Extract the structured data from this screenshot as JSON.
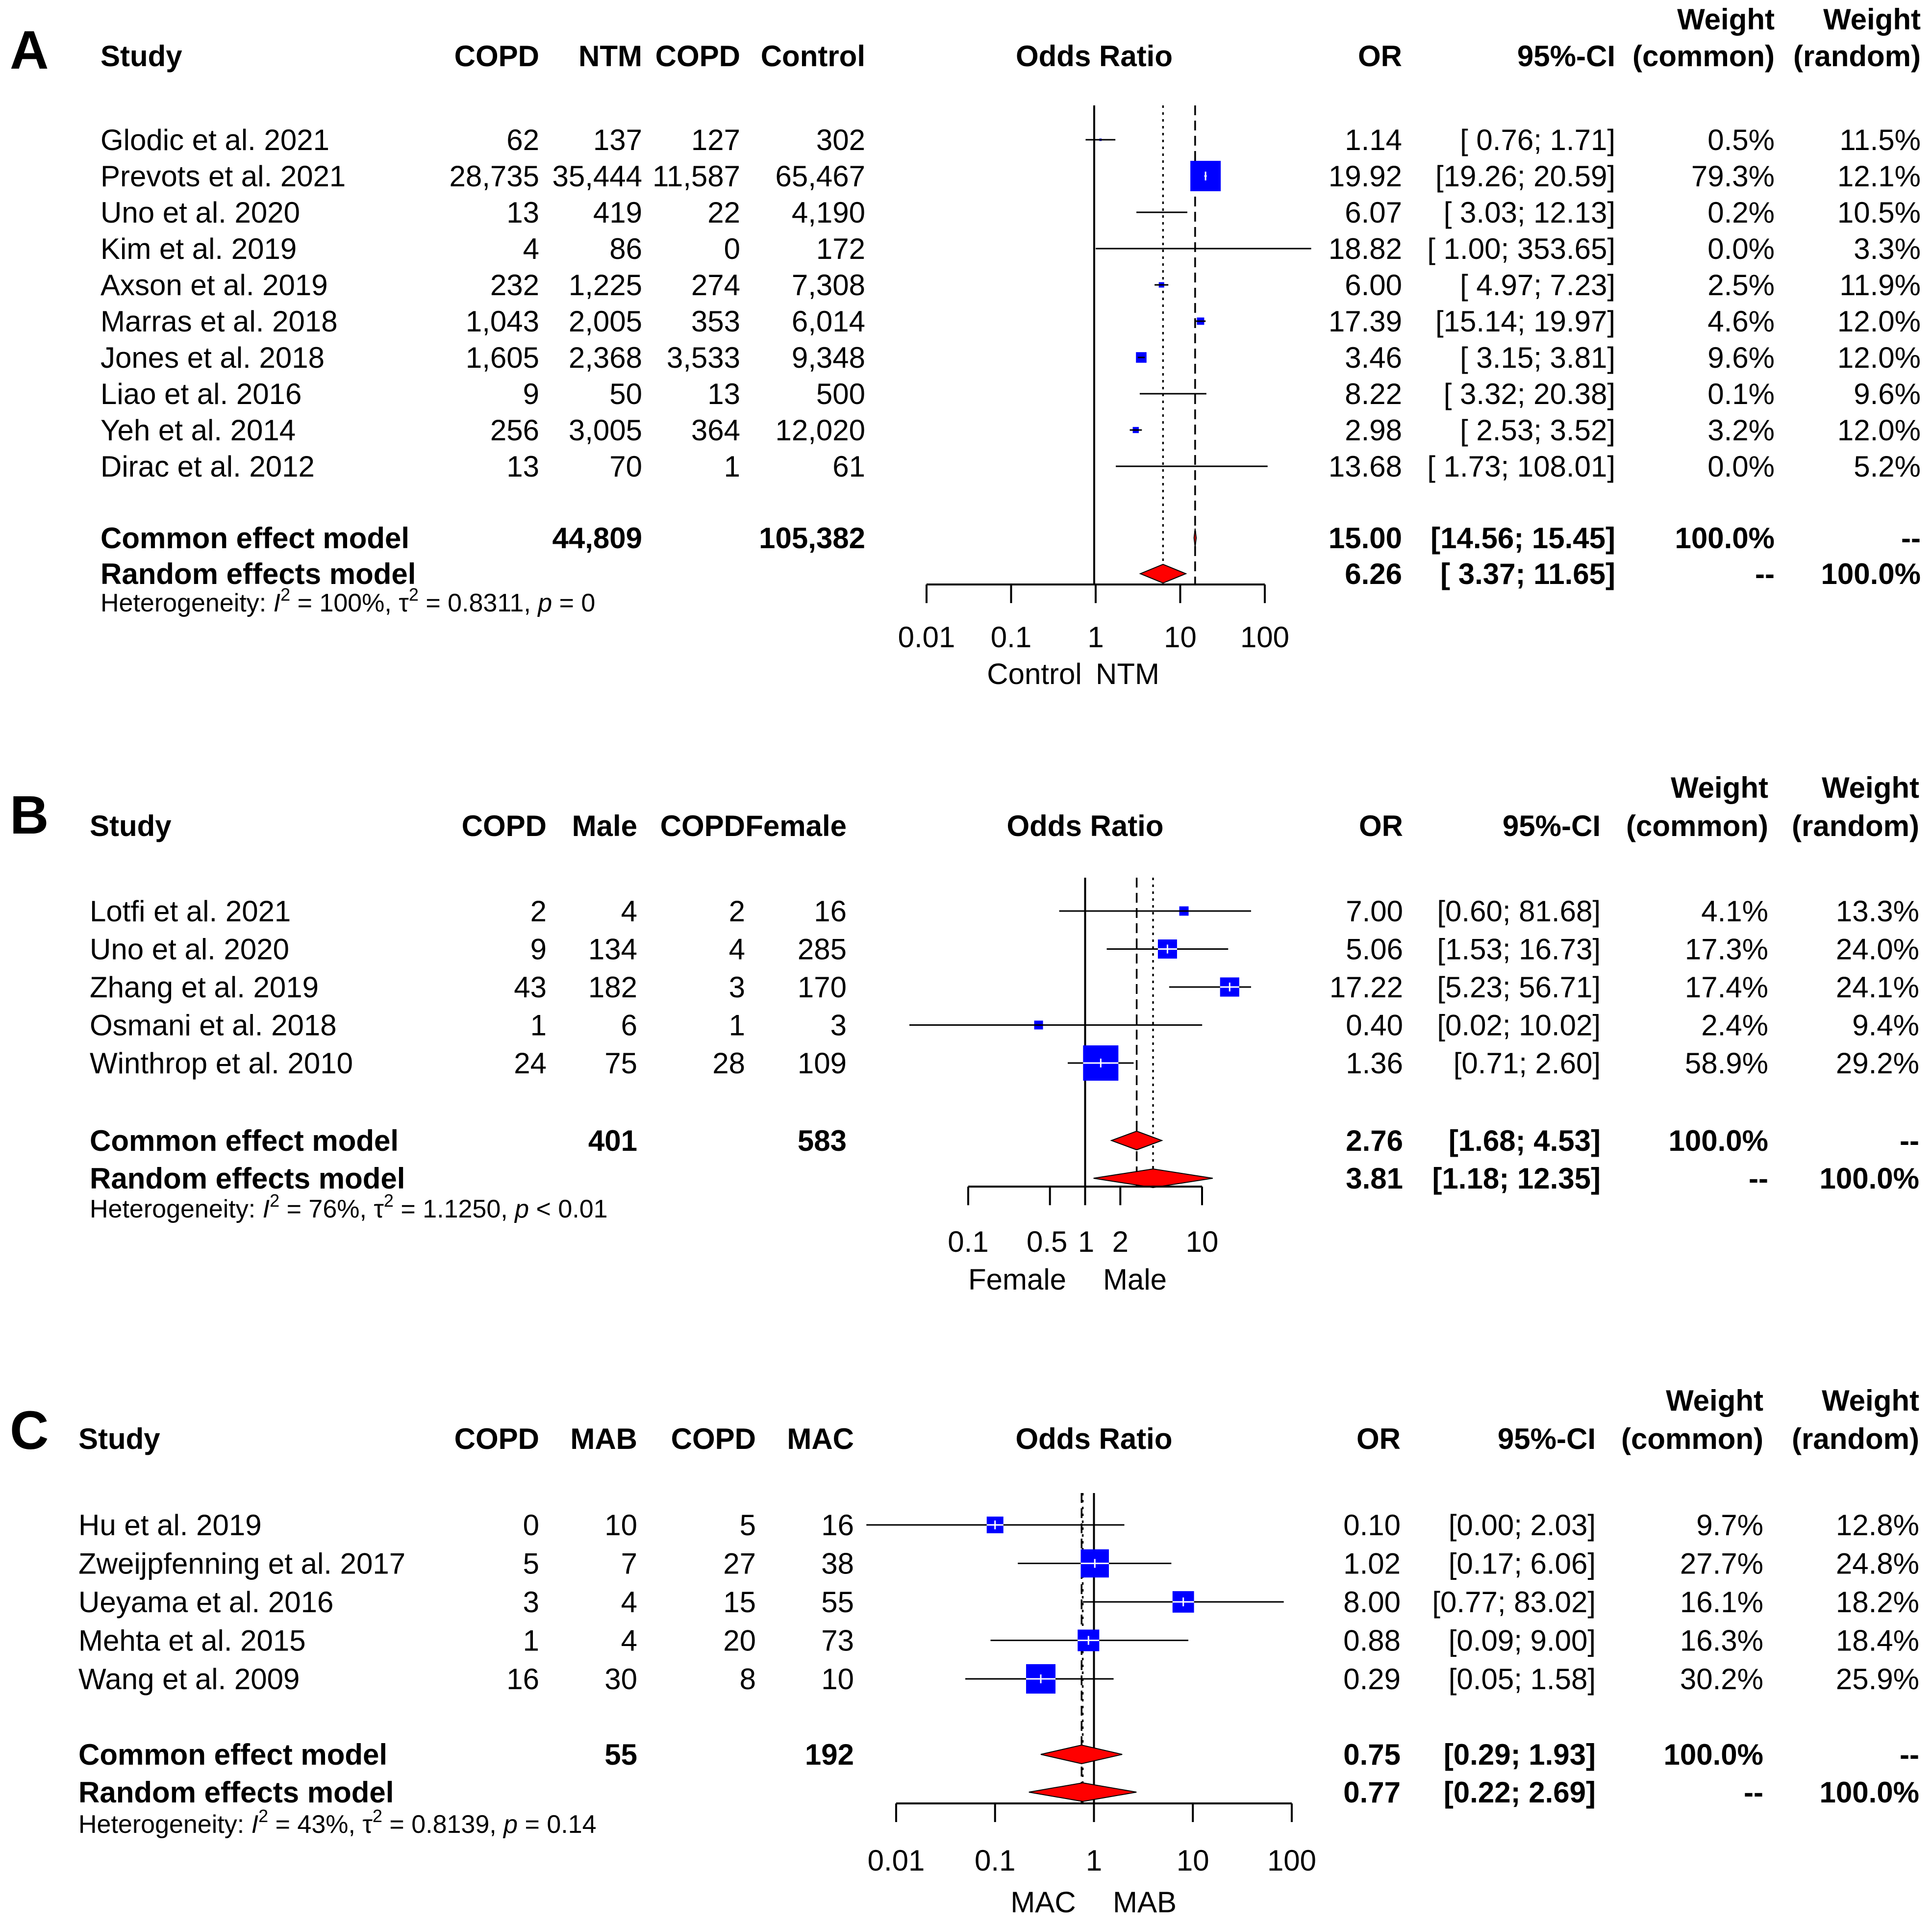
{
  "chart_data": [
    {
      "type": "forest",
      "panel": "A",
      "columns": {
        "study": "Study",
        "g1_events": "COPD",
        "g1_total": "NTM",
        "g2_events": "COPD",
        "g2_total": "Control",
        "plot": "Odds Ratio",
        "or": "OR",
        "ci": "95%-CI",
        "w_common": [
          "Weight",
          "(common)"
        ],
        "w_random": [
          "Weight",
          "(random)"
        ]
      },
      "axis": {
        "ticks": [
          0.01,
          0.1,
          1,
          10,
          100
        ],
        "tick_labels": [
          "0.01",
          "0.1",
          "1",
          "10",
          "100"
        ],
        "xlim": [
          0.01,
          100
        ],
        "left_label": "Control",
        "right_label": "NTM"
      },
      "studies": [
        {
          "name": "Glodic et al. 2021",
          "g1_events": "62",
          "g1_total": "137",
          "g2_events": "127",
          "g2_total": "302",
          "or_text": "1.14",
          "ci_text": "[ 0.76;   1.71]",
          "w_common": "0.5%",
          "w_random": "11.5%",
          "or": 1.14,
          "lo": 0.76,
          "hi": 1.71,
          "w": 0.5
        },
        {
          "name": "Prevots et al. 2021",
          "g1_events": "28,735",
          "g1_total": "35,444",
          "g2_events": "11,587",
          "g2_total": "65,467",
          "or_text": "19.92",
          "ci_text": "[19.26;  20.59]",
          "w_common": "79.3%",
          "w_random": "12.1%",
          "or": 19.92,
          "lo": 19.26,
          "hi": 20.59,
          "w": 79.3
        },
        {
          "name": "Uno et al. 2020",
          "g1_events": "13",
          "g1_total": "419",
          "g2_events": "22",
          "g2_total": "4,190",
          "or_text": "6.07",
          "ci_text": "[ 3.03;  12.13]",
          "w_common": "0.2%",
          "w_random": "10.5%",
          "or": 6.07,
          "lo": 3.03,
          "hi": 12.13,
          "w": 0.2
        },
        {
          "name": "Kim et al. 2019",
          "g1_events": "4",
          "g1_total": "86",
          "g2_events": "0",
          "g2_total": "172",
          "or_text": "18.82",
          "ci_text": "[ 1.00; 353.65]",
          "w_common": "0.0%",
          "w_random": "3.3%",
          "or": 18.82,
          "lo": 1.0,
          "hi": 353.65,
          "w": 0.0
        },
        {
          "name": "Axson et al. 2019",
          "g1_events": "232",
          "g1_total": "1,225",
          "g2_events": "274",
          "g2_total": "7,308",
          "or_text": "6.00",
          "ci_text": "[ 4.97;   7.23]",
          "w_common": "2.5%",
          "w_random": "11.9%",
          "or": 6.0,
          "lo": 4.97,
          "hi": 7.23,
          "w": 2.5
        },
        {
          "name": "Marras et al. 2018",
          "g1_events": "1,043",
          "g1_total": "2,005",
          "g2_events": "353",
          "g2_total": "6,014",
          "or_text": "17.39",
          "ci_text": "[15.14;  19.97]",
          "w_common": "4.6%",
          "w_random": "12.0%",
          "or": 17.39,
          "lo": 15.14,
          "hi": 19.97,
          "w": 4.6
        },
        {
          "name": "Jones et al. 2018",
          "g1_events": "1,605",
          "g1_total": "2,368",
          "g2_events": "3,533",
          "g2_total": "9,348",
          "or_text": "3.46",
          "ci_text": "[ 3.15;   3.81]",
          "w_common": "9.6%",
          "w_random": "12.0%",
          "or": 3.46,
          "lo": 3.15,
          "hi": 3.81,
          "w": 9.6
        },
        {
          "name": "Liao et al. 2016",
          "g1_events": "9",
          "g1_total": "50",
          "g2_events": "13",
          "g2_total": "500",
          "or_text": "8.22",
          "ci_text": "[ 3.32;  20.38]",
          "w_common": "0.1%",
          "w_random": "9.6%",
          "or": 8.22,
          "lo": 3.32,
          "hi": 20.38,
          "w": 0.1
        },
        {
          "name": "Yeh et al. 2014",
          "g1_events": "256",
          "g1_total": "3,005",
          "g2_events": "364",
          "g2_total": "12,020",
          "or_text": "2.98",
          "ci_text": "[ 2.53;   3.52]",
          "w_common": "3.2%",
          "w_random": "12.0%",
          "or": 2.98,
          "lo": 2.53,
          "hi": 3.52,
          "w": 3.2
        },
        {
          "name": "Dirac et al. 2012",
          "g1_events": "13",
          "g1_total": "70",
          "g2_events": "1",
          "g2_total": "61",
          "or_text": "13.68",
          "ci_text": "[ 1.73; 108.01]",
          "w_common": "0.0%",
          "w_random": "5.2%",
          "or": 13.68,
          "lo": 1.73,
          "hi": 108.01,
          "w": 0.0
        }
      ],
      "common": {
        "label": "Common effect model",
        "g1_total": "44,809",
        "g2_total": "105,382",
        "or_text": "15.00",
        "ci_text": "[14.56;  15.45]",
        "w_common": "100.0%",
        "w_random": "--",
        "or": 15.0,
        "lo": 14.56,
        "hi": 15.45
      },
      "random": {
        "label": "Random effects model",
        "or_text": "6.26",
        "ci_text": "[ 3.37;  11.65]",
        "w_common": "--",
        "w_random": "100.0%",
        "or": 6.26,
        "lo": 3.37,
        "hi": 11.65
      },
      "heterogeneity": {
        "prefix": "Heterogeneity: ",
        "i2": "I",
        "i2_value": " = 100%, ",
        "tau": "τ",
        "tau_value": " = 0.8311, ",
        "p": "p",
        "p_value": " = 0"
      }
    },
    {
      "type": "forest",
      "panel": "B",
      "columns": {
        "study": "Study",
        "g1_events": "COPD",
        "g1_total": "Male",
        "g2_events": "COPD",
        "g2_total": "Female",
        "plot": "Odds Ratio",
        "or": "OR",
        "ci": "95%-CI",
        "w_common": [
          "Weight",
          "(common)"
        ],
        "w_random": [
          "Weight",
          "(random)"
        ]
      },
      "axis": {
        "ticks": [
          0.1,
          0.5,
          1,
          2,
          10
        ],
        "tick_labels": [
          "0.1",
          "0.5",
          "1",
          "2",
          "10"
        ],
        "xlim": [
          0.1,
          10
        ],
        "left_label": "Female",
        "right_label": "Male"
      },
      "studies": [
        {
          "name": "Lotfi et al. 2021",
          "g1_events": "2",
          "g1_total": "4",
          "g2_events": "2",
          "g2_total": "16",
          "or_text": "7.00",
          "ci_text": "[0.60; 81.68]",
          "w_common": "4.1%",
          "w_random": "13.3%",
          "or": 7.0,
          "lo": 0.6,
          "hi": 81.68,
          "w": 4.1
        },
        {
          "name": "Uno et al. 2020",
          "g1_events": "9",
          "g1_total": "134",
          "g2_events": "4",
          "g2_total": "285",
          "or_text": "5.06",
          "ci_text": "[1.53; 16.73]",
          "w_common": "17.3%",
          "w_random": "24.0%",
          "or": 5.06,
          "lo": 1.53,
          "hi": 16.73,
          "w": 17.3
        },
        {
          "name": "Zhang et al. 2019",
          "g1_events": "43",
          "g1_total": "182",
          "g2_events": "3",
          "g2_total": "170",
          "or_text": "17.22",
          "ci_text": "[5.23; 56.71]",
          "w_common": "17.4%",
          "w_random": "24.1%",
          "or": 17.22,
          "lo": 5.23,
          "hi": 56.71,
          "w": 17.4
        },
        {
          "name": "Osmani et al. 2018",
          "g1_events": "1",
          "g1_total": "6",
          "g2_events": "1",
          "g2_total": "3",
          "or_text": "0.40",
          "ci_text": "[0.02; 10.02]",
          "w_common": "2.4%",
          "w_random": "9.4%",
          "or": 0.4,
          "lo": 0.02,
          "hi": 10.02,
          "w": 2.4
        },
        {
          "name": "Winthrop et al. 2010",
          "g1_events": "24",
          "g1_total": "75",
          "g2_events": "28",
          "g2_total": "109",
          "or_text": "1.36",
          "ci_text": "[0.71;  2.60]",
          "w_common": "58.9%",
          "w_random": "29.2%",
          "or": 1.36,
          "lo": 0.71,
          "hi": 2.6,
          "w": 58.9
        }
      ],
      "common": {
        "label": "Common effect model",
        "g1_total": "401",
        "g2_total": "583",
        "or_text": "2.76",
        "ci_text": "[1.68;  4.53]",
        "w_common": "100.0%",
        "w_random": "--",
        "or": 2.76,
        "lo": 1.68,
        "hi": 4.53
      },
      "random": {
        "label": "Random effects model",
        "or_text": "3.81",
        "ci_text": "[1.18; 12.35]",
        "w_common": "--",
        "w_random": "100.0%",
        "or": 3.81,
        "lo": 1.18,
        "hi": 12.35
      },
      "heterogeneity": {
        "prefix": "Heterogeneity: ",
        "i2": "I",
        "i2_value": " = 76%, ",
        "tau": "τ",
        "tau_value": " = 1.1250, ",
        "p": "p",
        "p_value": " < 0.01"
      }
    },
    {
      "type": "forest",
      "panel": "C",
      "columns": {
        "study": "Study",
        "g1_events": "COPD",
        "g1_total": "MAB",
        "g2_events": "COPD",
        "g2_total": "MAC",
        "plot": "Odds Ratio",
        "or": "OR",
        "ci": "95%-CI",
        "w_common": [
          "Weight",
          "(common)"
        ],
        "w_random": [
          "Weight",
          "(random)"
        ]
      },
      "axis": {
        "ticks": [
          0.01,
          0.1,
          1,
          10,
          100
        ],
        "tick_labels": [
          "0.01",
          "0.1",
          "1",
          "10",
          "100"
        ],
        "xlim": [
          0.01,
          100
        ],
        "left_label": "MAC",
        "right_label": "MAB"
      },
      "studies": [
        {
          "name": "Hu et al. 2019",
          "g1_events": "0",
          "g1_total": "10",
          "g2_events": "5",
          "g2_total": "16",
          "or_text": "0.10",
          "ci_text": "[0.00;  2.03]",
          "w_common": "9.7%",
          "w_random": "12.8%",
          "or": 0.1,
          "lo": 0.005,
          "hi": 2.03,
          "w": 9.7
        },
        {
          "name": "Zweijpfenning et al. 2017",
          "g1_events": "5",
          "g1_total": "7",
          "g2_events": "27",
          "g2_total": "38",
          "or_text": "1.02",
          "ci_text": "[0.17;  6.06]",
          "w_common": "27.7%",
          "w_random": "24.8%",
          "or": 1.02,
          "lo": 0.17,
          "hi": 6.06,
          "w": 27.7
        },
        {
          "name": "Ueyama et al. 2016",
          "g1_events": "3",
          "g1_total": "4",
          "g2_events": "15",
          "g2_total": "55",
          "or_text": "8.00",
          "ci_text": "[0.77; 83.02]",
          "w_common": "16.1%",
          "w_random": "18.2%",
          "or": 8.0,
          "lo": 0.77,
          "hi": 83.02,
          "w": 16.1
        },
        {
          "name": "Mehta et al. 2015",
          "g1_events": "1",
          "g1_total": "4",
          "g2_events": "20",
          "g2_total": "73",
          "or_text": "0.88",
          "ci_text": "[0.09;  9.00]",
          "w_common": "16.3%",
          "w_random": "18.4%",
          "or": 0.88,
          "lo": 0.09,
          "hi": 9.0,
          "w": 16.3
        },
        {
          "name": "Wang et al. 2009",
          "g1_events": "16",
          "g1_total": "30",
          "g2_events": "8",
          "g2_total": "10",
          "or_text": "0.29",
          "ci_text": "[0.05;  1.58]",
          "w_common": "30.2%",
          "w_random": "25.9%",
          "or": 0.29,
          "lo": 0.05,
          "hi": 1.58,
          "w": 30.2
        }
      ],
      "common": {
        "label": "Common effect model",
        "g1_total": "55",
        "g2_total": "192",
        "or_text": "0.75",
        "ci_text": "[0.29;  1.93]",
        "w_common": "100.0%",
        "w_random": "--",
        "or": 0.75,
        "lo": 0.29,
        "hi": 1.93
      },
      "random": {
        "label": "Random effects model",
        "or_text": "0.77",
        "ci_text": "[0.22;  2.69]",
        "w_common": "--",
        "w_random": "100.0%",
        "or": 0.77,
        "lo": 0.22,
        "hi": 2.69
      },
      "heterogeneity": {
        "prefix": "Heterogeneity: ",
        "i2": "I",
        "i2_value": " = 43%, ",
        "tau": "τ",
        "tau_value": " = 0.8139, ",
        "p": "p",
        "p_value": " = 0.14"
      }
    }
  ],
  "colors": {
    "square": "#0000ff",
    "diamond": "#ff0000",
    "line": "#000000",
    "ci_inside": "#ffffff"
  }
}
